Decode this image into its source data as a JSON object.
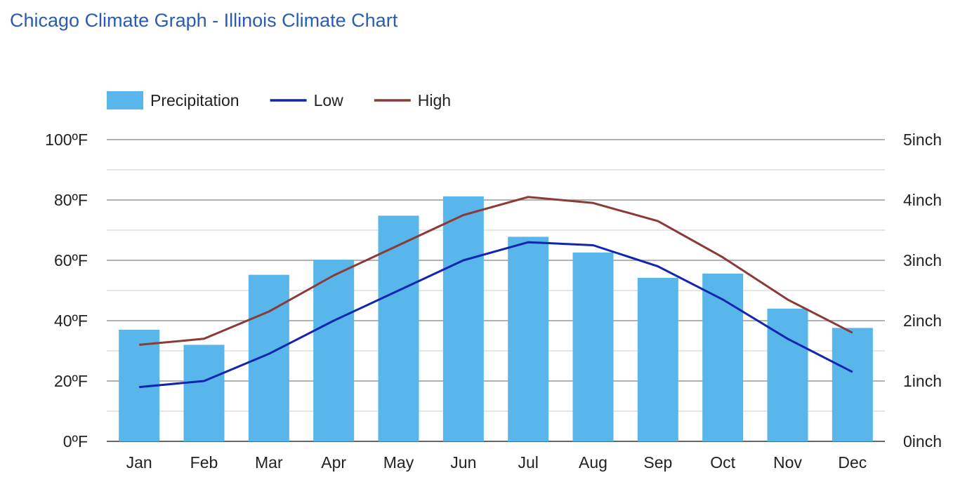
{
  "page": {
    "title": "Chicago Climate Graph - Illinois Climate Chart"
  },
  "chart_data": {
    "type": "bar",
    "categories": [
      "Jan",
      "Feb",
      "Mar",
      "Apr",
      "May",
      "Jun",
      "Jul",
      "Aug",
      "Sep",
      "Oct",
      "Nov",
      "Dec"
    ],
    "series": [
      {
        "name": "Precipitation",
        "kind": "bar",
        "axis": "right",
        "color": "#58b6ea",
        "values": [
          1.85,
          1.6,
          2.76,
          3.01,
          3.74,
          4.06,
          3.39,
          3.13,
          2.71,
          2.78,
          2.2,
          1.88
        ]
      },
      {
        "name": "Low",
        "kind": "line",
        "axis": "left",
        "color": "#1025b0",
        "values": [
          18,
          20,
          29,
          40,
          50,
          60,
          66,
          65,
          58,
          47,
          34,
          23
        ]
      },
      {
        "name": "High",
        "kind": "line",
        "axis": "left",
        "color": "#8b3a36",
        "values": [
          32,
          34,
          43,
          55,
          65,
          75,
          81,
          79,
          73,
          61,
          47,
          36
        ]
      }
    ],
    "y_left": {
      "min": 0,
      "max": 100,
      "ticks": [
        "0ºF",
        "20ºF",
        "40ºF",
        "60ºF",
        "80ºF",
        "100ºF"
      ]
    },
    "y_right": {
      "min": 0,
      "max": 5,
      "ticks": [
        "0inch",
        "1inch",
        "2inch",
        "3inch",
        "4inch",
        "5inch"
      ]
    },
    "grid": true,
    "legend_position": "top-left",
    "colors": {
      "axis_text": "#222222",
      "grid_major": "#999999",
      "grid_minor": "#cccccc",
      "baseline": "#333333"
    }
  }
}
